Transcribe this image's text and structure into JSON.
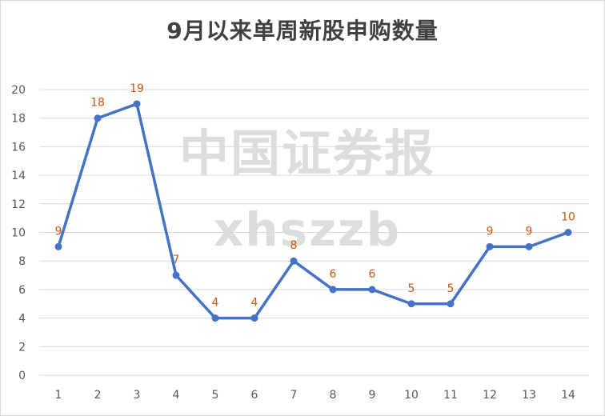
{
  "chart_data": {
    "type": "line",
    "title": "9月以来单周新股申购数量",
    "x": [
      1,
      2,
      3,
      4,
      5,
      6,
      7,
      8,
      9,
      10,
      11,
      12,
      13,
      14
    ],
    "values": [
      9,
      18,
      19,
      7,
      4,
      4,
      8,
      6,
      6,
      5,
      5,
      9,
      9,
      10
    ],
    "ylim": [
      0,
      20
    ],
    "yticks": [
      0,
      2,
      4,
      6,
      8,
      10,
      12,
      14,
      16,
      18,
      20
    ],
    "grid": true,
    "data_labels": true,
    "legend": "none",
    "line_color": "#4472c4",
    "label_color": "#c55a11"
  },
  "watermark": {
    "line1": "中国证券报",
    "line2": "xhszzb"
  }
}
